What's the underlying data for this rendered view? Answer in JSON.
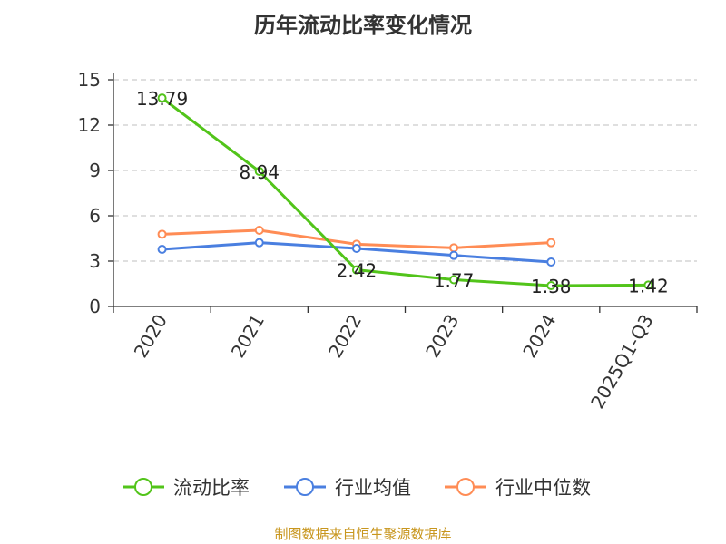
{
  "chart_data": {
    "type": "line",
    "title": "历年流动比率变化情况",
    "categories": [
      "2020",
      "2021",
      "2022",
      "2023",
      "2024",
      "2025Q1-Q3"
    ],
    "ylim": [
      0,
      15
    ],
    "yticks": [
      0,
      3,
      6,
      9,
      12,
      15
    ],
    "grid": true,
    "legend_position": "bottom",
    "series": [
      {
        "name": "流动比率",
        "color": "#52c41a",
        "values": [
          13.79,
          8.94,
          2.42,
          1.77,
          1.38,
          1.42
        ],
        "labels": [
          "13.79",
          "8.94",
          "2.42",
          "1.77",
          "1.38",
          "1.42"
        ]
      },
      {
        "name": "行业均值",
        "color": "#4a7fe0",
        "values": [
          3.78,
          4.22,
          3.84,
          3.38,
          2.94,
          null
        ]
      },
      {
        "name": "行业中位数",
        "color": "#ff8c55",
        "values": [
          4.78,
          5.04,
          4.12,
          3.88,
          4.22,
          null
        ]
      }
    ]
  },
  "source": "制图数据来自恒生聚源数据库"
}
